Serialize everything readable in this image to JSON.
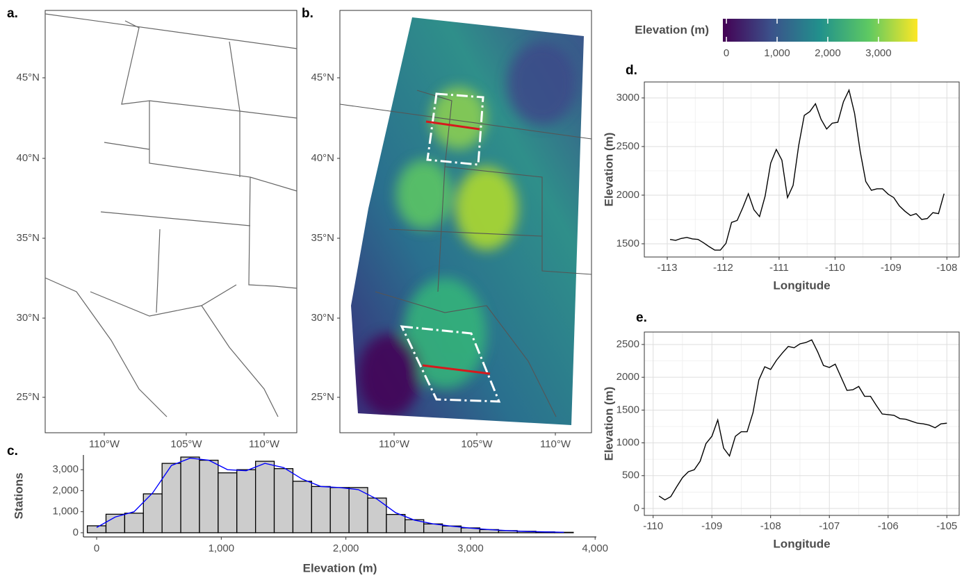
{
  "chart_data": [
    {
      "type": "map",
      "title": "a.",
      "ylabels": [
        "45°N",
        "40°N",
        "35°N",
        "30°N",
        "25°N"
      ],
      "xlabels": [
        "110°W",
        "105°W",
        "110°W"
      ]
    },
    {
      "type": "map",
      "title": "b.",
      "ylabels": [
        "45°N",
        "40°N",
        "35°N",
        "30°N",
        "25°N"
      ],
      "xlabels": [
        "110°W",
        "105°W",
        "110°W"
      ]
    },
    {
      "type": "colorbar",
      "title": "Elevation (m)",
      "lim": [
        -70,
        3770
      ],
      "ticks": [
        0,
        {
          "value": 1000,
          "label": "1,000"
        },
        {
          "value": 2000,
          "label": "2,000"
        },
        {
          "value": 3000,
          "label": "3,000"
        }
      ],
      "colors": [
        "#440154",
        "#3b528b",
        "#21918c",
        "#5ec962",
        "#fde725"
      ]
    },
    {
      "type": "histogram",
      "title": "c.",
      "xlabel": "Elevation (m)",
      "ylabel": "Stations",
      "bins": [
        -75,
        75,
        225,
        375,
        525,
        675,
        825,
        975,
        1125,
        1275,
        1425,
        1575,
        1725,
        1875,
        2025,
        2175,
        2325,
        2475,
        2625,
        2775,
        2925,
        3075,
        3225,
        3375,
        3525,
        3675,
        3825
      ],
      "values": [
        330,
        880,
        930,
        1850,
        3300,
        3600,
        3450,
        2850,
        3000,
        3400,
        3050,
        2450,
        2200,
        2150,
        2150,
        1650,
        870,
        620,
        420,
        320,
        230,
        150,
        100,
        70,
        40,
        20
      ],
      "color": "#cccccc",
      "density": {
        "color": "#0000ff",
        "x": [
          0,
          150,
          300,
          450,
          600,
          750,
          900,
          1050,
          1200,
          1350,
          1500,
          1650,
          1800,
          1950,
          2100,
          2250,
          2400,
          2550,
          2700,
          2850,
          3000,
          3150,
          3300,
          3450,
          3600,
          3750
        ],
        "values": [
          250,
          750,
          1000,
          1900,
          3200,
          3550,
          3450,
          3000,
          2950,
          3300,
          3100,
          2550,
          2200,
          2150,
          2050,
          1600,
          950,
          600,
          420,
          310,
          220,
          150,
          100,
          60,
          40,
          20
        ]
      },
      "xlim": [
        -190,
        4010
      ],
      "ylim": [
        -200,
        3700
      ],
      "xticks": [
        0,
        {
          "value": 1000,
          "label": "1,000"
        },
        {
          "value": 2000,
          "label": "2,000"
        },
        {
          "value": 3000,
          "label": "3,000"
        },
        {
          "value": 4000,
          "label": "4,000"
        }
      ],
      "yticks": [
        0,
        {
          "value": 1000,
          "label": "1,000"
        },
        {
          "value": 2000,
          "label": "2,000"
        },
        {
          "value": 3000,
          "label": "3,000"
        }
      ]
    },
    {
      "type": "line",
      "title": "d.",
      "xlabel": "Longitude",
      "ylabel": "Elevation (m)",
      "color": "#000000",
      "grid": true,
      "x": [
        -112.95,
        -112.85,
        -112.75,
        -112.65,
        -112.55,
        -112.45,
        -112.35,
        -112.25,
        -112.15,
        -112.05,
        -111.95,
        -111.85,
        -111.75,
        -111.65,
        -111.55,
        -111.45,
        -111.35,
        -111.25,
        -111.15,
        -111.05,
        -110.95,
        -110.85,
        -110.75,
        -110.65,
        -110.55,
        -110.45,
        -110.35,
        -110.25,
        -110.15,
        -110.05,
        -109.95,
        -109.85,
        -109.75,
        -109.65,
        -109.55,
        -109.45,
        -109.35,
        -109.25,
        -109.15,
        -109.05,
        -108.95,
        -108.85,
        -108.75,
        -108.65,
        -108.55,
        -108.45,
        -108.35,
        -108.25,
        -108.15,
        -108.05
      ],
      "values": [
        1545,
        1535,
        1555,
        1565,
        1550,
        1545,
        1510,
        1470,
        1435,
        1435,
        1505,
        1720,
        1740,
        1870,
        2015,
        1850,
        1780,
        1990,
        2330,
        2470,
        2360,
        1975,
        2100,
        2510,
        2820,
        2860,
        2940,
        2780,
        2680,
        2740,
        2750,
        2960,
        3080,
        2840,
        2450,
        2140,
        2050,
        2065,
        2065,
        2010,
        1975,
        1890,
        1835,
        1790,
        1810,
        1750,
        1760,
        1820,
        1810,
        2015
      ],
      "xlim": [
        -113.41,
        -107.78
      ],
      "ylim": [
        1364,
        3164
      ],
      "xticks": [
        -113,
        -112,
        -111,
        -110,
        -109,
        -108
      ],
      "yticks": [
        1500,
        2000,
        2500,
        3000
      ]
    },
    {
      "type": "line",
      "title": "e.",
      "xlabel": "Longitude",
      "ylabel": "Elevation (m)",
      "color": "#000000",
      "grid": true,
      "x": [
        -109.9,
        -109.8,
        -109.7,
        -109.6,
        -109.5,
        -109.4,
        -109.3,
        -109.2,
        -109.1,
        -109.0,
        -108.9,
        -108.8,
        -108.7,
        -108.6,
        -108.5,
        -108.4,
        -108.3,
        -108.2,
        -108.1,
        -108.0,
        -107.9,
        -107.8,
        -107.7,
        -107.6,
        -107.5,
        -107.4,
        -107.3,
        -107.2,
        -107.1,
        -107.0,
        -106.9,
        -106.8,
        -106.7,
        -106.6,
        -106.5,
        -106.4,
        -106.3,
        -106.2,
        -106.1,
        -106.0,
        -105.9,
        -105.8,
        -105.7,
        -105.6,
        -105.5,
        -105.4,
        -105.3,
        -105.2,
        -105.1,
        -105.0
      ],
      "values": [
        190,
        130,
        180,
        330,
        470,
        560,
        590,
        720,
        990,
        1100,
        1350,
        920,
        800,
        1100,
        1170,
        1170,
        1460,
        1960,
        2160,
        2120,
        2260,
        2370,
        2470,
        2450,
        2510,
        2530,
        2570,
        2390,
        2180,
        2150,
        2200,
        2000,
        1800,
        1810,
        1860,
        1710,
        1710,
        1570,
        1440,
        1430,
        1420,
        1370,
        1360,
        1330,
        1300,
        1290,
        1270,
        1230,
        1290,
        1300
      ],
      "xlim": [
        -110.15,
        -104.79
      ],
      "ylim": [
        -106,
        2690
      ],
      "xticks": [
        -110,
        -109,
        -108,
        -107,
        -106,
        -105
      ],
      "yticks": [
        0,
        500,
        1000,
        1500,
        2000,
        2500
      ]
    }
  ]
}
